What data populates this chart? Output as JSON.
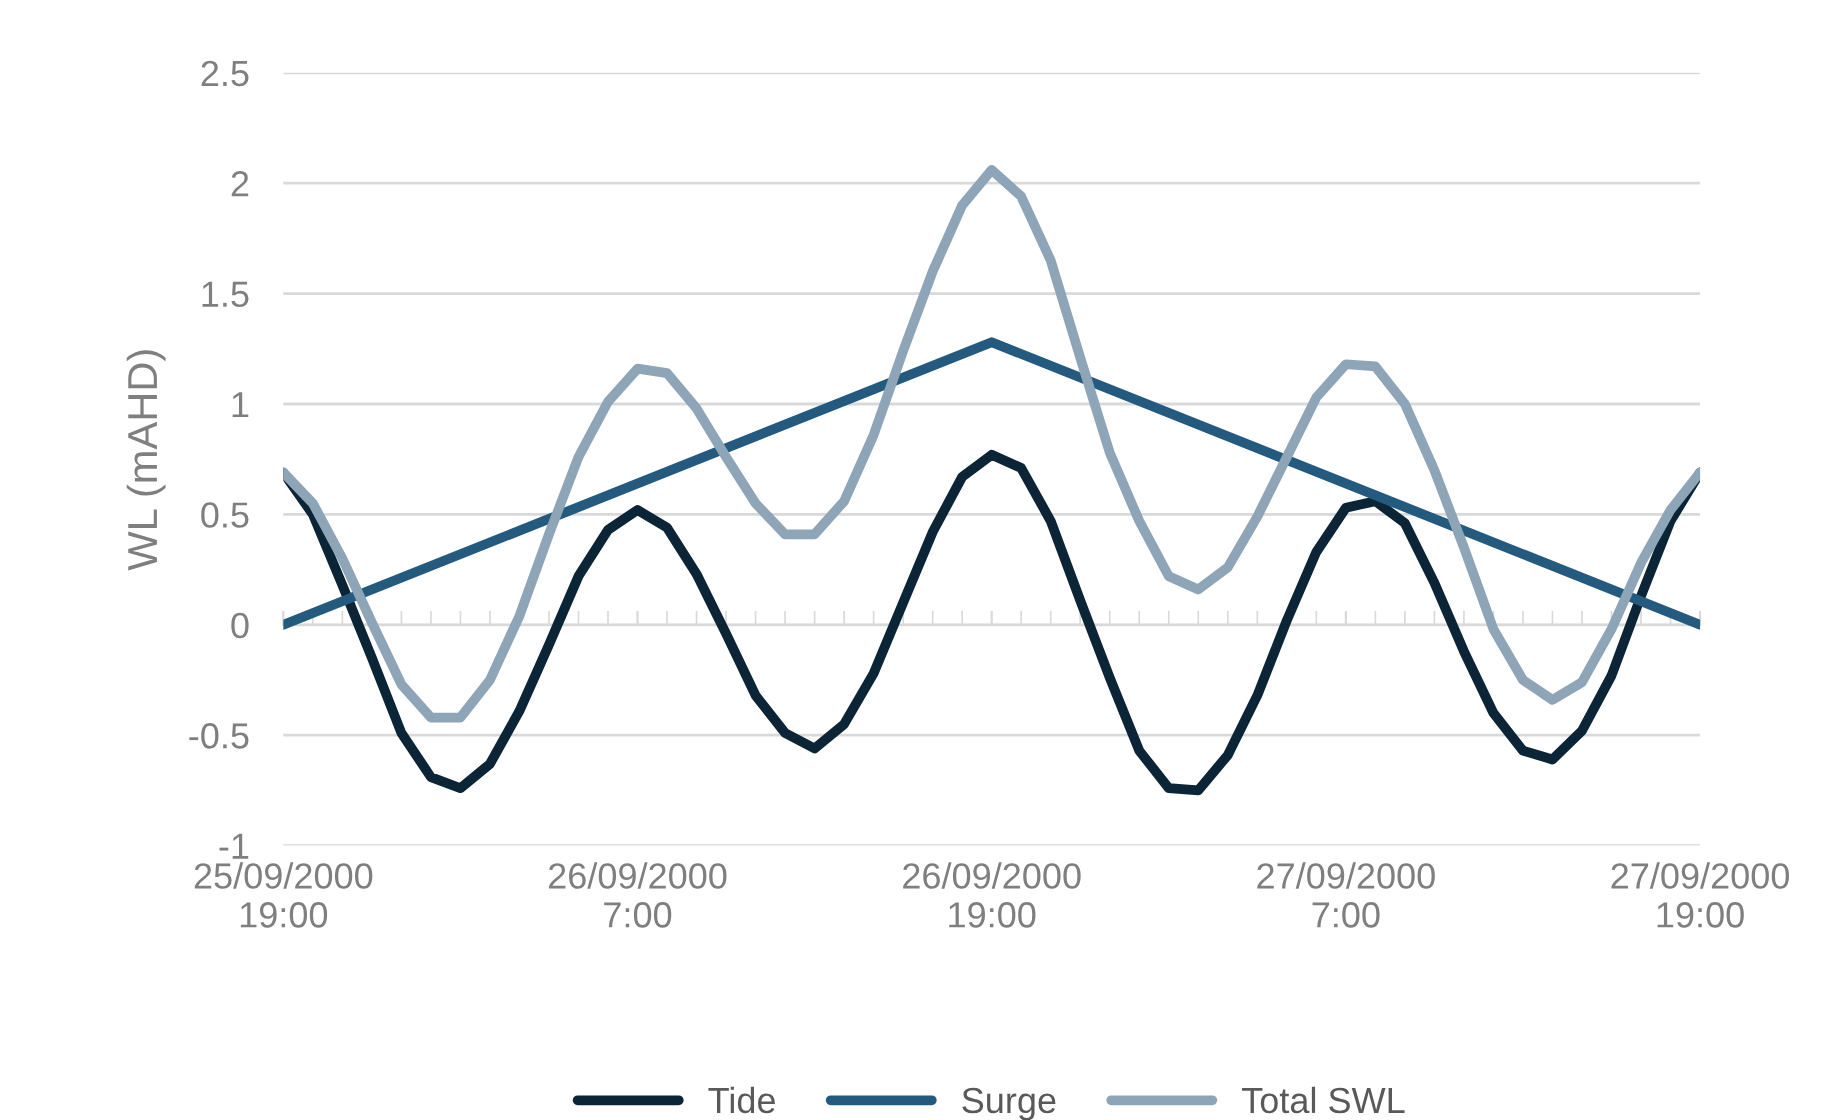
{
  "chart_data": {
    "type": "line",
    "ylabel": "WL (mAHD)",
    "x": [
      "2000-09-25T19:00",
      "2000-09-25T20:00",
      "2000-09-25T21:00",
      "2000-09-25T22:00",
      "2000-09-25T23:00",
      "2000-09-26T00:00",
      "2000-09-26T01:00",
      "2000-09-26T02:00",
      "2000-09-26T03:00",
      "2000-09-26T04:00",
      "2000-09-26T05:00",
      "2000-09-26T06:00",
      "2000-09-26T07:00",
      "2000-09-26T08:00",
      "2000-09-26T09:00",
      "2000-09-26T10:00",
      "2000-09-26T11:00",
      "2000-09-26T12:00",
      "2000-09-26T13:00",
      "2000-09-26T14:00",
      "2000-09-26T15:00",
      "2000-09-26T16:00",
      "2000-09-26T17:00",
      "2000-09-26T18:00",
      "2000-09-26T19:00",
      "2000-09-26T20:00",
      "2000-09-26T21:00",
      "2000-09-26T22:00",
      "2000-09-26T23:00",
      "2000-09-27T00:00",
      "2000-09-27T01:00",
      "2000-09-27T02:00",
      "2000-09-27T03:00",
      "2000-09-27T04:00",
      "2000-09-27T05:00",
      "2000-09-27T06:00",
      "2000-09-27T07:00",
      "2000-09-27T08:00",
      "2000-09-27T09:00",
      "2000-09-27T10:00",
      "2000-09-27T11:00",
      "2000-09-27T12:00",
      "2000-09-27T13:00",
      "2000-09-27T14:00",
      "2000-09-27T15:00",
      "2000-09-27T16:00",
      "2000-09-27T17:00",
      "2000-09-27T18:00",
      "2000-09-27T19:00"
    ],
    "series": [
      {
        "name": "Tide",
        "color": "#0b2536",
        "values": [
          0.69,
          0.5,
          0.18,
          -0.15,
          -0.49,
          -0.69,
          -0.74,
          -0.63,
          -0.39,
          -0.09,
          0.22,
          0.43,
          0.52,
          0.44,
          0.23,
          -0.04,
          -0.32,
          -0.49,
          -0.56,
          -0.45,
          -0.22,
          0.1,
          0.42,
          0.67,
          0.77,
          0.71,
          0.47,
          0.11,
          -0.24,
          -0.57,
          -0.74,
          -0.75,
          -0.59,
          -0.32,
          0.02,
          0.33,
          0.53,
          0.56,
          0.46,
          0.19,
          -0.12,
          -0.4,
          -0.57,
          -0.61,
          -0.48,
          -0.23,
          0.13,
          0.47,
          0.69
        ]
      },
      {
        "name": "Surge",
        "color": "#245a7e",
        "x": [
          "2000-09-25T19:00",
          "2000-09-26T19:00",
          "2000-09-27T19:00"
        ],
        "values": [
          0,
          1.28,
          0
        ]
      },
      {
        "name": "Total SWL",
        "color": "#8ea5b8",
        "values": [
          0.69,
          0.55,
          0.3,
          0.01,
          -0.27,
          -0.42,
          -0.42,
          -0.25,
          0.04,
          0.41,
          0.76,
          1.01,
          1.16,
          1.14,
          0.98,
          0.76,
          0.55,
          0.41,
          0.41,
          0.56,
          0.86,
          1.24,
          1.6,
          1.9,
          2.06,
          1.94,
          1.65,
          1.21,
          0.78,
          0.47,
          0.22,
          0.16,
          0.26,
          0.49,
          0.76,
          1.03,
          1.18,
          1.17,
          1.0,
          0.7,
          0.35,
          -0.02,
          -0.25,
          -0.34,
          -0.26,
          -0.02,
          0.28,
          0.52,
          0.69
        ]
      }
    ],
    "xlim": [
      "2000-09-25T19:00",
      "2000-09-27T19:00"
    ],
    "xticks": [
      {
        "value": "2000-09-25T19:00",
        "label": "25/09/2000\n19:00"
      },
      {
        "value": "2000-09-26T07:00",
        "label": "26/09/2000\n7:00"
      },
      {
        "value": "2000-09-26T19:00",
        "label": "26/09/2000\n19:00"
      },
      {
        "value": "2000-09-27T07:00",
        "label": "27/09/2000\n7:00"
      },
      {
        "value": "2000-09-27T19:00",
        "label": "27/09/2000\n19:00"
      }
    ],
    "ylim": [
      -1,
      2.5
    ],
    "yticks": [
      -1,
      -0.5,
      0,
      0.5,
      1,
      1.5,
      2,
      2.5
    ],
    "grid": "y",
    "legend": "bottom",
    "marker": "none",
    "line_style": "solid"
  }
}
